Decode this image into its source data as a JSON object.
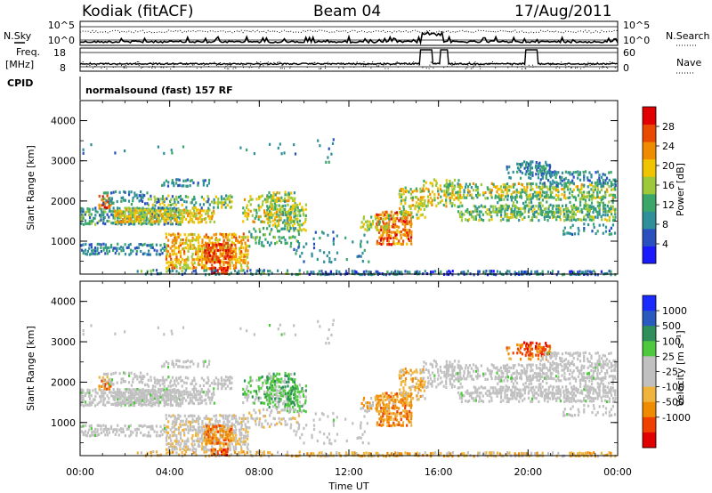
{
  "header": {
    "station": "Kodiak (fitACF)",
    "beam": "Beam 04",
    "date": "17/Aug/2011"
  },
  "top_panel": {
    "nsky_label": "N.Sky",
    "nsearch_label": "N.Search",
    "left_ticks": [
      "10^5",
      "10^0"
    ],
    "right_ticks": [
      "10^5",
      "10^0"
    ],
    "freq_label_line1": "Freq.",
    "freq_label_line2": "[MHz]",
    "freq_ticks": [
      "18",
      "8"
    ],
    "nave_label": "Nave",
    "nave_ticks": [
      "60",
      "0"
    ],
    "cpid_label": "CPID",
    "cpid_text": "normalsound (fast) 157 RF"
  },
  "colors": {
    "power": [
      "#1a1aff",
      "#2a50c0",
      "#2e8f9a",
      "#3aa66a",
      "#9cc83a",
      "#f0c400",
      "#f08a00",
      "#e84a00",
      "#e00000"
    ],
    "velocity": [
      "#e00000",
      "#f04000",
      "#f08a00",
      "#f0b43c",
      "#c0c0c0",
      "#c0c0c0",
      "#4ec83c",
      "#2e8f5a",
      "#2a5ac0",
      "#1a2aff"
    ]
  },
  "chart_data": [
    {
      "type": "heatmap",
      "title": "",
      "ylabel": "Slant Range [km]",
      "xlabel": "",
      "xlim": [
        "00:00",
        "00:00"
      ],
      "ylim": [
        180,
        4500
      ],
      "x_ticks": [
        "00:00",
        "04:00",
        "08:00",
        "12:00",
        "16:00",
        "20:00",
        "00:00"
      ],
      "y_ticks": [
        1000,
        2000,
        3000,
        4000
      ],
      "colorbar_label": "Power [dB]",
      "colorbar_ticks": [
        4,
        8,
        12,
        16,
        20,
        24,
        28
      ],
      "range": [
        0,
        32
      ]
    },
    {
      "type": "heatmap",
      "title": "",
      "ylabel": "Slant Range [km]",
      "xlabel": "Time UT",
      "xlim": [
        "00:00",
        "00:00"
      ],
      "ylim": [
        180,
        4500
      ],
      "x_ticks": [
        "00:00",
        "04:00",
        "08:00",
        "12:00",
        "16:00",
        "20:00",
        "00:00"
      ],
      "y_ticks": [
        1000,
        2000,
        3000,
        4000
      ],
      "colorbar_label": "Velocity [m s⁻¹]",
      "colorbar_ticks": [
        "1000",
        "500",
        "100",
        "25",
        "-25",
        "-100",
        "-500",
        "-1000"
      ]
    }
  ]
}
